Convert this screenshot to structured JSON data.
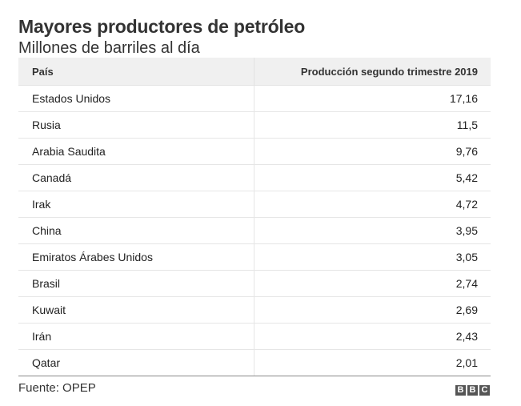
{
  "title": "Mayores productores de petróleo",
  "subtitle": "Millones de barriles al día",
  "source": "Fuente: OPEP",
  "logo": [
    "B",
    "B",
    "C"
  ],
  "chart_data": {
    "type": "table",
    "columns": [
      "País",
      "Producción segundo trimestre 2019"
    ],
    "rows": [
      {
        "country": "Estados Unidos",
        "value": "17,16"
      },
      {
        "country": "Rusia",
        "value": "11,5"
      },
      {
        "country": "Arabia Saudita",
        "value": "9,76"
      },
      {
        "country": "Canadá",
        "value": "5,42"
      },
      {
        "country": "Irak",
        "value": "4,72"
      },
      {
        "country": "China",
        "value": "3,95"
      },
      {
        "country": "Emiratos Árabes Unidos",
        "value": "3,05"
      },
      {
        "country": "Brasil",
        "value": "2,74"
      },
      {
        "country": "Kuwait",
        "value": "2,69"
      },
      {
        "country": "Irán",
        "value": "2,43"
      },
      {
        "country": "Qatar",
        "value": "2,01"
      }
    ]
  }
}
